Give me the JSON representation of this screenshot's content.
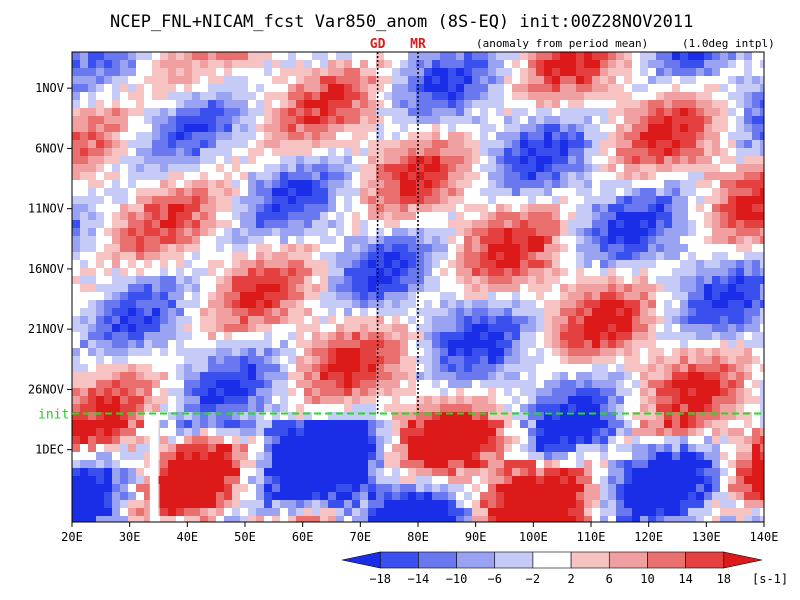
{
  "chart_data": {
    "type": "heatmap",
    "title": "NCEP_FNL+NICAM_fcst Var850_anom (8S-EQ) init:00Z28NOV2011",
    "subtitle": "(anomaly from period mean)",
    "note": "(1.0deg intpl)",
    "x_ticks": [
      "20E",
      "30E",
      "40E",
      "50E",
      "60E",
      "70E",
      "80E",
      "90E",
      "100E",
      "110E",
      "120E",
      "130E",
      "140E"
    ],
    "x_tick_values": [
      20,
      30,
      40,
      50,
      60,
      70,
      80,
      90,
      100,
      110,
      120,
      130,
      140
    ],
    "xlim": [
      20,
      140
    ],
    "y_ticks": [
      "1NOV",
      "6NOV",
      "11NOV",
      "16NOV",
      "21NOV",
      "26NOV",
      "1DEC"
    ],
    "y_tick_values": [
      1,
      6,
      11,
      16,
      21,
      26,
      31
    ],
    "ylim": [
      -2,
      37
    ],
    "init_label": "init",
    "init_day": 28,
    "markers": [
      {
        "label": "GD",
        "lon": 73
      },
      {
        "label": "MR",
        "lon": 80
      }
    ],
    "colorbar": {
      "levels": [
        "-18",
        "-14",
        "-10",
        "-6",
        "-2",
        "2",
        "6",
        "10",
        "14",
        "18"
      ],
      "units": "[s-1]",
      "colors": [
        "#1a2ee8",
        "#3a50ee",
        "#6a78f0",
        "#9aa2f2",
        "#c6caf6",
        "#ffffff",
        "#f6c2c2",
        "#f0a0a0",
        "#ea7070",
        "#e44040",
        "#dd1a1a"
      ]
    }
  }
}
